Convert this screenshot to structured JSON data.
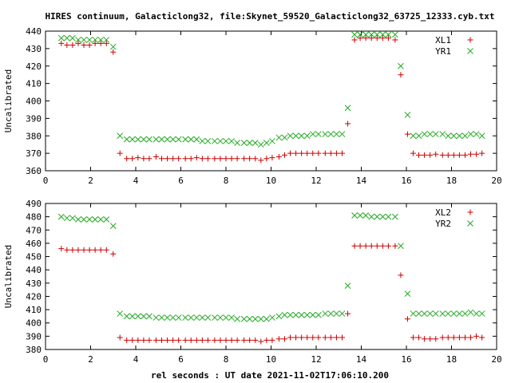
{
  "figure": {
    "title": "HIRES continuum, Galacticlong32, file:Skynet_59520_Galacticlong32_63725_12333.cyb.txt",
    "xlabel": "rel seconds : UT date 2021-11-02T17:06:10.200"
  },
  "colors": {
    "series_a": "#cc0000",
    "series_b": "#22aa22",
    "axis": "#000000"
  },
  "chart_data": [
    {
      "type": "scatter",
      "ylabel": "Uncalibrated",
      "xlim": [
        0,
        20
      ],
      "ylim": [
        360,
        440
      ],
      "xticks": [
        "0",
        "2",
        "4",
        "6",
        "8",
        "10",
        "12",
        "14",
        "16",
        "18",
        "20"
      ],
      "yticks": [
        "360",
        "370",
        "380",
        "390",
        "400",
        "410",
        "420",
        "430",
        "440"
      ],
      "legend_position": "top-right",
      "grid": false,
      "series": [
        {
          "name": "XL1",
          "marker": "plus",
          "color": "#cc0000",
          "x": [
            0.7,
            0.95,
            1.2,
            1.45,
            1.7,
            1.95,
            2.2,
            2.45,
            2.7,
            3.0,
            3.3,
            3.6,
            3.85,
            4.1,
            4.35,
            4.6,
            4.9,
            5.15,
            5.4,
            5.65,
            5.9,
            6.2,
            6.45,
            6.7,
            6.95,
            7.2,
            7.5,
            7.75,
            8.0,
            8.25,
            8.5,
            8.8,
            9.05,
            9.3,
            9.55,
            9.8,
            10.05,
            10.35,
            10.6,
            10.85,
            11.1,
            11.35,
            11.6,
            11.85,
            12.1,
            12.4,
            12.65,
            12.9,
            13.15,
            13.4,
            13.7,
            13.95,
            14.2,
            14.45,
            14.7,
            14.95,
            15.2,
            15.5,
            15.75,
            16.05,
            16.3,
            16.55,
            16.8,
            17.05,
            17.3,
            17.6,
            17.85,
            18.1,
            18.35,
            18.6,
            18.85,
            19.1,
            19.35
          ],
          "y": [
            433,
            432,
            432,
            433,
            432,
            432,
            433,
            433,
            433,
            428,
            370,
            367,
            367,
            367.5,
            367,
            367,
            368,
            367,
            367,
            367,
            367,
            367,
            367,
            367.5,
            367,
            367,
            367,
            367,
            367,
            367,
            367,
            367,
            367,
            367,
            366,
            367,
            367.5,
            368,
            369,
            370,
            370,
            370,
            370,
            370,
            370,
            370,
            370,
            370,
            370,
            387,
            435,
            436,
            436,
            436,
            436,
            436,
            436,
            435,
            415,
            381,
            370,
            369,
            369,
            369,
            369.5,
            369,
            369,
            369,
            369,
            369,
            369.5,
            369.5,
            370
          ]
        },
        {
          "name": "YR1",
          "marker": "cross",
          "color": "#22aa22",
          "x": [
            0.7,
            0.95,
            1.2,
            1.45,
            1.7,
            1.95,
            2.2,
            2.45,
            2.7,
            3.0,
            3.3,
            3.6,
            3.85,
            4.1,
            4.35,
            4.6,
            4.9,
            5.15,
            5.4,
            5.65,
            5.9,
            6.2,
            6.45,
            6.7,
            6.95,
            7.2,
            7.5,
            7.75,
            8.0,
            8.25,
            8.5,
            8.8,
            9.05,
            9.3,
            9.55,
            9.8,
            10.05,
            10.35,
            10.6,
            10.85,
            11.1,
            11.35,
            11.6,
            11.85,
            12.1,
            12.4,
            12.65,
            12.9,
            13.15,
            13.4,
            13.7,
            13.95,
            14.2,
            14.45,
            14.7,
            14.95,
            15.2,
            15.5,
            15.75,
            16.05,
            16.3,
            16.55,
            16.8,
            17.05,
            17.3,
            17.6,
            17.85,
            18.1,
            18.35,
            18.6,
            18.85,
            19.1,
            19.35
          ],
          "y": [
            436,
            436,
            436,
            435,
            435,
            435,
            435,
            435,
            435,
            431,
            380,
            378,
            378,
            378,
            378,
            378,
            378,
            378,
            378,
            378,
            378,
            378,
            378,
            378,
            377,
            377,
            377,
            377,
            377,
            377,
            376,
            376,
            376,
            376,
            375,
            376,
            377,
            379,
            379,
            380,
            380,
            380,
            380,
            381,
            381,
            381,
            381,
            381,
            381,
            396,
            438,
            438,
            438,
            438,
            438,
            438,
            438,
            438,
            420,
            392,
            380,
            380,
            381,
            381,
            381,
            381,
            380,
            380,
            380,
            380,
            381,
            381,
            380
          ]
        }
      ]
    },
    {
      "type": "scatter",
      "ylabel": "Uncalibrated",
      "xlim": [
        0,
        20
      ],
      "ylim": [
        380,
        490
      ],
      "xticks": [
        "0",
        "2",
        "4",
        "6",
        "8",
        "10",
        "12",
        "14",
        "16",
        "18",
        "20"
      ],
      "yticks": [
        "380",
        "390",
        "400",
        "410",
        "420",
        "430",
        "440",
        "450",
        "460",
        "470",
        "480",
        "490"
      ],
      "legend_position": "top-right",
      "grid": false,
      "series": [
        {
          "name": "XL2",
          "marker": "plus",
          "color": "#cc0000",
          "x": [
            0.7,
            0.95,
            1.2,
            1.45,
            1.7,
            1.95,
            2.2,
            2.45,
            2.7,
            3.0,
            3.3,
            3.6,
            3.85,
            4.1,
            4.35,
            4.6,
            4.9,
            5.15,
            5.4,
            5.65,
            5.9,
            6.2,
            6.45,
            6.7,
            6.95,
            7.2,
            7.5,
            7.75,
            8.0,
            8.25,
            8.5,
            8.8,
            9.05,
            9.3,
            9.55,
            9.8,
            10.05,
            10.35,
            10.6,
            10.85,
            11.1,
            11.35,
            11.6,
            11.85,
            12.1,
            12.4,
            12.65,
            12.9,
            13.15,
            13.4,
            13.7,
            13.95,
            14.2,
            14.45,
            14.7,
            14.95,
            15.2,
            15.5,
            15.75,
            16.05,
            16.3,
            16.55,
            16.8,
            17.05,
            17.3,
            17.6,
            17.85,
            18.1,
            18.35,
            18.6,
            18.85,
            19.1,
            19.35
          ],
          "y": [
            456,
            455,
            455,
            455,
            455,
            455,
            455,
            455,
            455,
            452,
            389,
            387,
            387,
            387,
            387,
            387,
            387,
            387,
            387,
            387,
            387,
            387,
            387,
            387,
            387,
            387,
            387,
            387,
            387,
            387,
            387,
            387,
            387,
            387,
            386,
            387,
            387,
            388,
            388,
            389,
            389,
            389,
            389,
            389,
            389,
            389,
            389,
            389,
            389,
            407,
            458,
            458,
            458,
            458,
            458,
            458,
            458,
            458,
            436,
            403,
            389,
            389,
            388,
            388,
            388,
            389,
            389,
            389,
            389,
            389,
            389,
            390,
            389
          ]
        },
        {
          "name": "YR2",
          "marker": "cross",
          "color": "#22aa22",
          "x": [
            0.7,
            0.95,
            1.2,
            1.45,
            1.7,
            1.95,
            2.2,
            2.45,
            2.7,
            3.0,
            3.3,
            3.6,
            3.85,
            4.1,
            4.35,
            4.6,
            4.9,
            5.15,
            5.4,
            5.65,
            5.9,
            6.2,
            6.45,
            6.7,
            6.95,
            7.2,
            7.5,
            7.75,
            8.0,
            8.25,
            8.5,
            8.8,
            9.05,
            9.3,
            9.55,
            9.8,
            10.05,
            10.35,
            10.6,
            10.85,
            11.1,
            11.35,
            11.6,
            11.85,
            12.1,
            12.4,
            12.65,
            12.9,
            13.15,
            13.4,
            13.7,
            13.95,
            14.2,
            14.45,
            14.7,
            14.95,
            15.2,
            15.5,
            15.75,
            16.05,
            16.3,
            16.55,
            16.8,
            17.05,
            17.3,
            17.6,
            17.85,
            18.1,
            18.35,
            18.6,
            18.85,
            19.1,
            19.35
          ],
          "y": [
            480,
            479,
            479,
            478,
            478,
            478,
            478,
            478,
            478,
            473,
            407,
            405,
            405,
            405,
            405,
            405,
            404,
            404,
            404,
            404,
            404,
            404,
            404,
            404,
            404,
            404,
            404,
            404,
            404,
            404,
            403,
            403,
            403,
            403,
            403,
            403,
            404,
            405,
            406,
            406,
            406,
            406,
            406,
            406,
            406,
            407,
            407,
            407,
            407,
            428,
            481,
            481,
            481,
            480,
            480,
            480,
            480,
            480,
            458,
            422,
            407,
            407,
            407,
            407,
            407,
            407,
            407,
            407,
            407,
            407,
            408,
            407,
            407
          ]
        }
      ]
    }
  ]
}
